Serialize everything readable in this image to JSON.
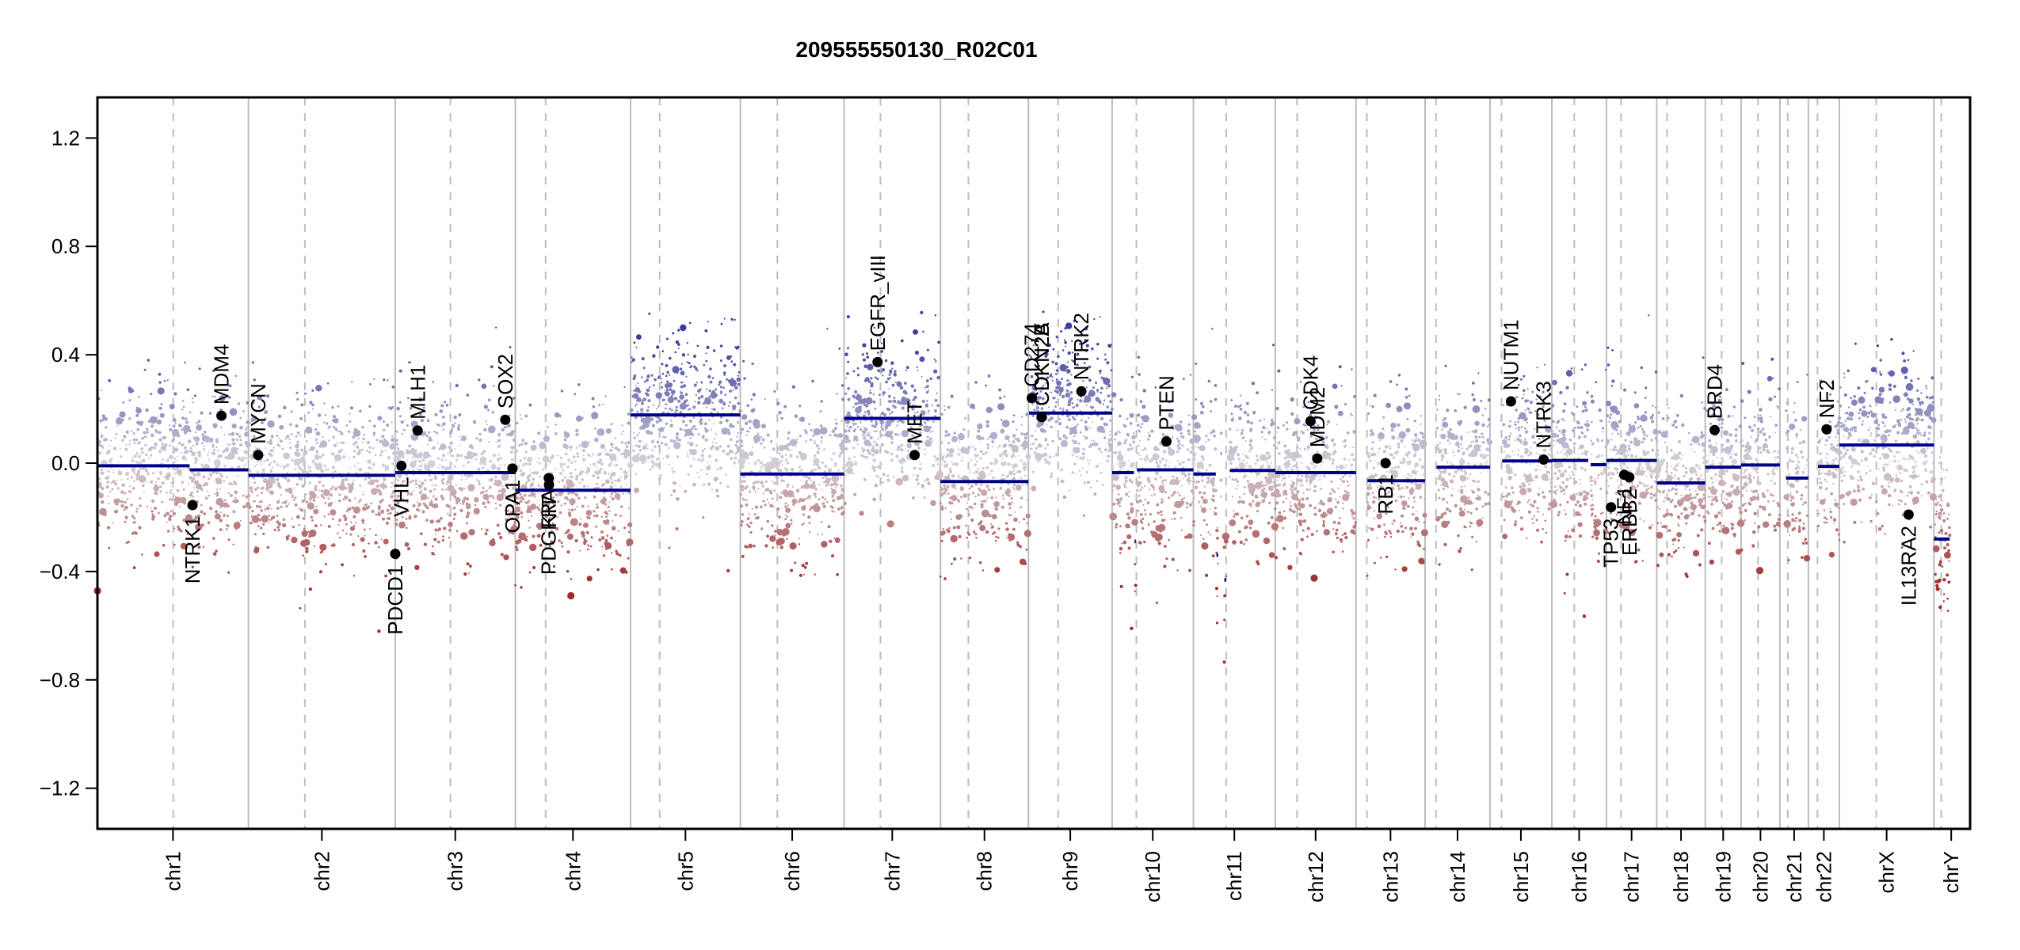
{
  "chart_data": {
    "type": "scatter",
    "title": "209555550130_R02C01",
    "xlabel": "",
    "ylabel": "",
    "ylim": [
      -1.35,
      1.35
    ],
    "yticks": [
      1.2,
      0.8,
      0.4,
      0.0,
      -0.4,
      -0.8,
      -1.2
    ],
    "ytick_labels": [
      "1.2",
      "0.8",
      "0.4",
      "0.0",
      "−0.4",
      "−0.8",
      "−1.2"
    ],
    "grid": false,
    "legend": "none",
    "colors": {
      "segment": "#00008b",
      "gain": "#3c3ca0",
      "neutral": "#d2d2d8",
      "loss": "#a02828",
      "gene_point": "#000000",
      "chrom_boundary": "#bdbdbd",
      "centromere": "#bdbdbd"
    },
    "chromosomes": [
      {
        "name": "chr1",
        "length_mb": 249,
        "centromere_mb": 125
      },
      {
        "name": "chr2",
        "length_mb": 242,
        "centromere_mb": 93
      },
      {
        "name": "chr3",
        "length_mb": 198,
        "centromere_mb": 91
      },
      {
        "name": "chr4",
        "length_mb": 190,
        "centromere_mb": 50
      },
      {
        "name": "chr5",
        "length_mb": 181,
        "centromere_mb": 48
      },
      {
        "name": "chr6",
        "length_mb": 171,
        "centromere_mb": 61
      },
      {
        "name": "chr7",
        "length_mb": 159,
        "centromere_mb": 60
      },
      {
        "name": "chr8",
        "length_mb": 145,
        "centromere_mb": 46
      },
      {
        "name": "chr9",
        "length_mb": 138,
        "centromere_mb": 49
      },
      {
        "name": "chr10",
        "length_mb": 134,
        "centromere_mb": 40
      },
      {
        "name": "chr11",
        "length_mb": 135,
        "centromere_mb": 54
      },
      {
        "name": "chr12",
        "length_mb": 133,
        "centromere_mb": 36
      },
      {
        "name": "chr13",
        "length_mb": 114,
        "centromere_mb": 18
      },
      {
        "name": "chr14",
        "length_mb": 107,
        "centromere_mb": 18
      },
      {
        "name": "chr15",
        "length_mb": 102,
        "centromere_mb": 19
      },
      {
        "name": "chr16",
        "length_mb": 90,
        "centromere_mb": 37
      },
      {
        "name": "chr17",
        "length_mb": 83,
        "centromere_mb": 24
      },
      {
        "name": "chr18",
        "length_mb": 80,
        "centromere_mb": 17
      },
      {
        "name": "chr19",
        "length_mb": 59,
        "centromere_mb": 27
      },
      {
        "name": "chr20",
        "length_mb": 64,
        "centromere_mb": 28
      },
      {
        "name": "chr21",
        "length_mb": 47,
        "centromere_mb": 13
      },
      {
        "name": "chr22",
        "length_mb": 51,
        "centromere_mb": 15
      },
      {
        "name": "chrX",
        "length_mb": 156,
        "centromere_mb": 61
      },
      {
        "name": "chrY",
        "length_mb": 57,
        "centromere_mb": 12
      }
    ],
    "segments": [
      {
        "chrom": "chr1",
        "start": 0,
        "end": 152,
        "value": -0.01
      },
      {
        "chrom": "chr1",
        "start": 152,
        "end": 249,
        "value": -0.025
      },
      {
        "chrom": "chr2",
        "start": 0,
        "end": 242,
        "value": -0.045
      },
      {
        "chrom": "chr3",
        "start": 0,
        "end": 198,
        "value": -0.035
      },
      {
        "chrom": "chr4",
        "start": 0,
        "end": 190,
        "value": -0.1
      },
      {
        "chrom": "chr5",
        "start": 0,
        "end": 181,
        "value": 0.178
      },
      {
        "chrom": "chr6",
        "start": 0,
        "end": 171,
        "value": -0.04
      },
      {
        "chrom": "chr7",
        "start": 0,
        "end": 159,
        "value": 0.165
      },
      {
        "chrom": "chr8",
        "start": 0,
        "end": 145,
        "value": -0.068
      },
      {
        "chrom": "chr9",
        "start": 1,
        "end": 138,
        "value": 0.185
      },
      {
        "chrom": "chr10",
        "start": 0,
        "end": 36,
        "value": -0.035
      },
      {
        "chrom": "chr10",
        "start": 37,
        "end": 39,
        "value": -0.29
      },
      {
        "chrom": "chr10",
        "start": 41,
        "end": 134,
        "value": -0.025
      },
      {
        "chrom": "chr11",
        "start": 0,
        "end": 37,
        "value": -0.04
      },
      {
        "chrom": "chr11",
        "start": 38,
        "end": 41,
        "value": -0.34
      },
      {
        "chrom": "chr11",
        "start": 45,
        "end": 46,
        "value": 0.035
      },
      {
        "chrom": "chr11",
        "start": 51,
        "end": 54,
        "value": -0.43
      },
      {
        "chrom": "chr11",
        "start": 60,
        "end": 135,
        "value": -0.027
      },
      {
        "chrom": "chr12",
        "start": 0,
        "end": 133,
        "value": -0.035
      },
      {
        "chrom": "chr13",
        "start": 19,
        "end": 114,
        "value": -0.065
      },
      {
        "chrom": "chr14",
        "start": 19,
        "end": 107,
        "value": -0.015
      },
      {
        "chrom": "chr15",
        "start": 20,
        "end": 102,
        "value": 0.008
      },
      {
        "chrom": "chr16",
        "start": 0,
        "end": 60,
        "value": 0.01
      },
      {
        "chrom": "chr16",
        "start": 64,
        "end": 90,
        "value": -0.006
      },
      {
        "chrom": "chr17",
        "start": 0,
        "end": 83,
        "value": 0.01
      },
      {
        "chrom": "chr18",
        "start": 0,
        "end": 80,
        "value": -0.073
      },
      {
        "chrom": "chr19",
        "start": 0,
        "end": 59,
        "value": -0.015
      },
      {
        "chrom": "chr20",
        "start": 0,
        "end": 64,
        "value": -0.007
      },
      {
        "chrom": "chr21",
        "start": 10,
        "end": 47,
        "value": -0.055
      },
      {
        "chrom": "chr22",
        "start": 16,
        "end": 51,
        "value": -0.012
      },
      {
        "chrom": "chrX",
        "start": 0,
        "end": 156,
        "value": 0.067
      },
      {
        "chrom": "chrY",
        "start": 0,
        "end": 26,
        "value": -0.28
      }
    ],
    "genes": [
      {
        "name": "NTRK1",
        "chrom": "chr1",
        "pos": 156.8,
        "value": -0.155,
        "label_side": "below"
      },
      {
        "name": "MDM4",
        "chrom": "chr1",
        "pos": 204.5,
        "value": 0.175,
        "label_side": "above"
      },
      {
        "name": "MYCN",
        "chrom": "chr2",
        "pos": 16.0,
        "value": 0.03,
        "label_side": "above"
      },
      {
        "name": "PDCD1",
        "chrom": "chr2",
        "pos": 242.0,
        "value": -0.335,
        "label_side": "below"
      },
      {
        "name": "VHL",
        "chrom": "chr3",
        "pos": 10.2,
        "value": -0.01,
        "label_side": "below"
      },
      {
        "name": "MLH1",
        "chrom": "chr3",
        "pos": 37.0,
        "value": 0.12,
        "label_side": "above"
      },
      {
        "name": "SOX2",
        "chrom": "chr3",
        "pos": 181.4,
        "value": 0.16,
        "label_side": "above"
      },
      {
        "name": "OPA1",
        "chrom": "chr3",
        "pos": 193.3,
        "value": -0.02,
        "label_side": "below"
      },
      {
        "name": "PDGFRA",
        "chrom": "chr4",
        "pos": 55.1,
        "value": -0.055,
        "label_side": "below"
      },
      {
        "name": "KIT",
        "chrom": "chr4",
        "pos": 55.5,
        "value": -0.08,
        "label_side": "below"
      },
      {
        "name": "EGFR_vIII",
        "chrom": "chr7",
        "pos": 55.2,
        "value": 0.373,
        "label_side": "above"
      },
      {
        "name": "MET",
        "chrom": "chr7",
        "pos": 116.4,
        "value": 0.03,
        "label_side": "above"
      },
      {
        "name": "CD274",
        "chrom": "chr9",
        "pos": 5.5,
        "value": 0.24,
        "label_side": "above"
      },
      {
        "name": "CDKN2A",
        "chrom": "chr9",
        "pos": 21.97,
        "value": 0.17,
        "label_side": "above"
      },
      {
        "name": "CDKN2B",
        "chrom": "chr9",
        "pos": 22.0,
        "value": 0.17,
        "label_side": "above"
      },
      {
        "name": "NTRK2",
        "chrom": "chr9",
        "pos": 87.3,
        "value": 0.265,
        "label_side": "above"
      },
      {
        "name": "PTEN",
        "chrom": "chr10",
        "pos": 89.6,
        "value": 0.08,
        "label_side": "above"
      },
      {
        "name": "CDK4",
        "chrom": "chr12",
        "pos": 58.1,
        "value": 0.155,
        "label_side": "above"
      },
      {
        "name": "MDM2",
        "chrom": "chr12",
        "pos": 69.2,
        "value": 0.017,
        "label_side": "above"
      },
      {
        "name": "RB1",
        "chrom": "chr13",
        "pos": 48.9,
        "value": 0.0,
        "label_side": "below"
      },
      {
        "name": "NUTM1",
        "chrom": "chr15",
        "pos": 34.6,
        "value": 0.228,
        "label_side": "above"
      },
      {
        "name": "NTRK3",
        "chrom": "chr15",
        "pos": 88.5,
        "value": 0.013,
        "label_side": "above"
      },
      {
        "name": "TP53",
        "chrom": "chr17",
        "pos": 7.6,
        "value": -0.163,
        "label_side": "below"
      },
      {
        "name": "NF1",
        "chrom": "chr17",
        "pos": 29.4,
        "value": -0.043,
        "label_side": "below"
      },
      {
        "name": "ERBB2",
        "chrom": "chr17",
        "pos": 37.8,
        "value": -0.052,
        "label_side": "below"
      },
      {
        "name": "BRD4",
        "chrom": "chr19",
        "pos": 15.4,
        "value": 0.122,
        "label_side": "above"
      },
      {
        "name": "NF2",
        "chrom": "chr22",
        "pos": 30.0,
        "value": 0.125,
        "label_side": "above"
      },
      {
        "name": "IL13RA2",
        "chrom": "chrX",
        "pos": 114.2,
        "value": -0.19,
        "label_side": "below"
      }
    ],
    "probe_noise_sd": 0.14
  }
}
